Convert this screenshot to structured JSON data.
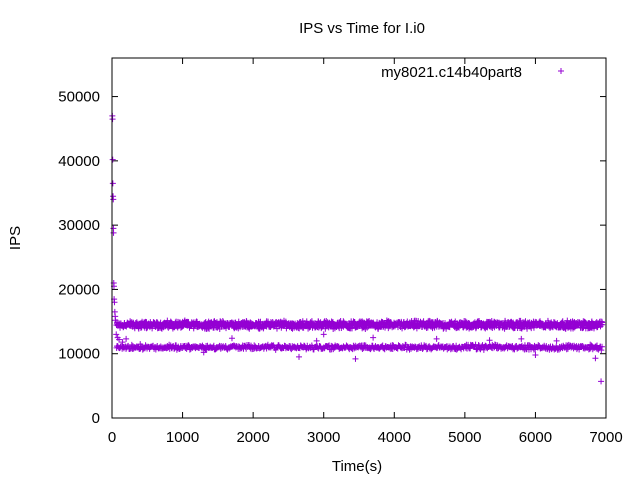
{
  "chart_data": {
    "type": "scatter",
    "title": "IPS vs Time for I.i0",
    "xlabel": "Time(s)",
    "ylabel": "IPS",
    "xlim": [
      0,
      7000
    ],
    "ylim": [
      0,
      56000
    ],
    "xticks": [
      0,
      1000,
      2000,
      3000,
      4000,
      5000,
      6000,
      7000
    ],
    "yticks": [
      0,
      10000,
      20000,
      30000,
      40000,
      50000
    ],
    "grid": false,
    "legend_position": "top-right",
    "marker": "plus",
    "series": [
      {
        "name": "my8021.c14b40part8",
        "color": "#9400d3",
        "bands": [
          {
            "x_range": [
              60,
              6950
            ],
            "y_center": 14500,
            "y_spread": 700
          },
          {
            "x_range": [
              60,
              6950
            ],
            "y_center": 11000,
            "y_spread": 450
          }
        ],
        "points": [
          [
            5,
            47000
          ],
          [
            8,
            46500
          ],
          [
            10,
            40200
          ],
          [
            12,
            36500
          ],
          [
            15,
            34500
          ],
          [
            18,
            34000
          ],
          [
            20,
            29500
          ],
          [
            22,
            28800
          ],
          [
            25,
            21000
          ],
          [
            28,
            20500
          ],
          [
            30,
            18500
          ],
          [
            35,
            18000
          ],
          [
            40,
            16500
          ],
          [
            45,
            15800
          ],
          [
            50,
            15200
          ],
          [
            60,
            13000
          ],
          [
            80,
            12500
          ],
          [
            100,
            12200
          ],
          [
            150,
            11800
          ],
          [
            200,
            12300
          ],
          [
            400,
            11500
          ],
          [
            1300,
            10200
          ],
          [
            1700,
            12400
          ],
          [
            2650,
            9500
          ],
          [
            2900,
            12000
          ],
          [
            3000,
            13000
          ],
          [
            3450,
            9200
          ],
          [
            3700,
            12500
          ],
          [
            4600,
            12300
          ],
          [
            5350,
            12100
          ],
          [
            5800,
            12300
          ],
          [
            6000,
            9800
          ],
          [
            6300,
            12000
          ],
          [
            6850,
            9300
          ],
          [
            6930,
            5700
          ]
        ]
      }
    ]
  }
}
